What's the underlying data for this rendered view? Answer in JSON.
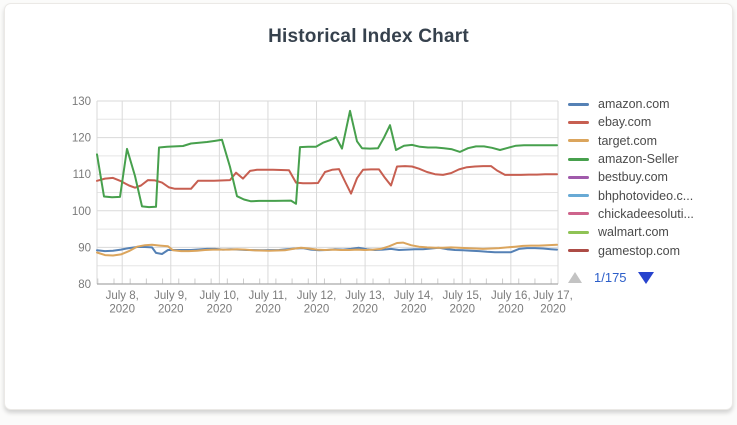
{
  "page": {
    "title": "Historical Index Chart"
  },
  "legend": {
    "items": [
      {
        "label": "amazon.com",
        "color": "#5581b5"
      },
      {
        "label": "ebay.com",
        "color": "#c75f51"
      },
      {
        "label": "target.com",
        "color": "#dba55d"
      },
      {
        "label": "amazon-Seller",
        "color": "#47a04d"
      },
      {
        "label": "bestbuy.com",
        "color": "#a05aab"
      },
      {
        "label": "bhphotovideo.c...",
        "color": "#68aad5"
      },
      {
        "label": "chickadeesoluti...",
        "color": "#ce648c"
      },
      {
        "label": "walmart.com",
        "color": "#8fc355"
      },
      {
        "label": "gamestop.com",
        "color": "#ad4c46"
      }
    ],
    "pagination": {
      "current": "1/175"
    }
  },
  "chart_data": {
    "type": "line",
    "title": "Historical Index Chart",
    "grid": true,
    "legend_position": "right",
    "ylim": [
      80,
      130
    ],
    "y_major_ticks": [
      80,
      90,
      100,
      110,
      120,
      130
    ],
    "y_minor_step": 5,
    "x_labels": [
      [
        "July 8,",
        "2020"
      ],
      [
        "July 9,",
        "2020"
      ],
      [
        "July 10,",
        "2020"
      ],
      [
        "July 11,",
        "2020"
      ],
      [
        "July 12,",
        "2020"
      ],
      [
        "July 13,",
        "2020"
      ],
      [
        "July 14,",
        "2020"
      ],
      [
        "July 15,",
        "2020"
      ],
      [
        "July 16,",
        "2020"
      ],
      [
        "July 17,",
        "2020"
      ]
    ],
    "series": [
      {
        "name": "amazon.com",
        "color": "#5581b5",
        "points": [
          [
            92,
            89.2
          ],
          [
            100,
            89.0
          ],
          [
            108,
            89.1
          ],
          [
            116,
            89.4
          ],
          [
            124,
            89.8
          ],
          [
            132,
            90.1
          ],
          [
            140,
            90.1
          ],
          [
            147,
            90.0
          ],
          [
            151,
            88.5
          ],
          [
            157,
            88.2
          ],
          [
            163,
            89.3
          ],
          [
            170,
            89.3
          ],
          [
            186,
            89.3
          ],
          [
            202,
            89.6
          ],
          [
            210,
            89.6
          ],
          [
            218,
            89.4
          ],
          [
            226,
            89.5
          ],
          [
            242,
            89.3
          ],
          [
            258,
            89.2
          ],
          [
            274,
            89.3
          ],
          [
            290,
            89.7
          ],
          [
            298,
            89.8
          ],
          [
            306,
            89.4
          ],
          [
            314,
            89.2
          ],
          [
            322,
            89.3
          ],
          [
            330,
            89.5
          ],
          [
            338,
            89.4
          ],
          [
            346,
            89.6
          ],
          [
            354,
            89.9
          ],
          [
            362,
            89.5
          ],
          [
            370,
            89.3
          ],
          [
            378,
            89.4
          ],
          [
            386,
            89.6
          ],
          [
            394,
            89.3
          ],
          [
            402,
            89.4
          ],
          [
            410,
            89.5
          ],
          [
            418,
            89.5
          ],
          [
            426,
            89.7
          ],
          [
            434,
            89.9
          ],
          [
            442,
            89.5
          ],
          [
            450,
            89.3
          ],
          [
            458,
            89.2
          ],
          [
            466,
            89.1
          ],
          [
            474,
            89.0
          ],
          [
            482,
            88.8
          ],
          [
            490,
            88.7
          ],
          [
            498,
            88.7
          ],
          [
            506,
            88.7
          ],
          [
            514,
            89.6
          ],
          [
            522,
            89.8
          ],
          [
            530,
            89.8
          ],
          [
            538,
            89.7
          ],
          [
            546,
            89.5
          ],
          [
            552,
            89.4
          ]
        ]
      },
      {
        "name": "ebay.com",
        "color": "#c75f51",
        "points": [
          [
            92,
            108.2
          ],
          [
            100,
            108.8
          ],
          [
            108,
            109.0
          ],
          [
            116,
            108.1
          ],
          [
            124,
            106.9
          ],
          [
            130,
            106.3
          ],
          [
            136,
            106.9
          ],
          [
            143,
            108.4
          ],
          [
            150,
            108.3
          ],
          [
            157,
            107.7
          ],
          [
            164,
            106.4
          ],
          [
            170,
            106.0
          ],
          [
            186,
            106.0
          ],
          [
            193,
            108.2
          ],
          [
            209,
            108.2
          ],
          [
            225,
            108.4
          ],
          [
            231,
            110.4
          ],
          [
            238,
            108.8
          ],
          [
            245,
            110.9
          ],
          [
            252,
            111.2
          ],
          [
            268,
            111.2
          ],
          [
            284,
            111.1
          ],
          [
            291,
            107.7
          ],
          [
            298,
            107.5
          ],
          [
            306,
            107.5
          ],
          [
            313,
            107.6
          ],
          [
            320,
            110.6
          ],
          [
            327,
            111.2
          ],
          [
            334,
            111.4
          ],
          [
            340,
            108.0
          ],
          [
            346,
            104.7
          ],
          [
            352,
            108.9
          ],
          [
            358,
            111.2
          ],
          [
            366,
            111.3
          ],
          [
            374,
            111.3
          ],
          [
            380,
            109.0
          ],
          [
            386,
            106.9
          ],
          [
            392,
            112.1
          ],
          [
            400,
            112.2
          ],
          [
            407,
            112.1
          ],
          [
            414,
            111.5
          ],
          [
            422,
            110.6
          ],
          [
            430,
            110.0
          ],
          [
            438,
            109.8
          ],
          [
            446,
            110.3
          ],
          [
            454,
            111.3
          ],
          [
            462,
            111.9
          ],
          [
            470,
            112.1
          ],
          [
            478,
            112.2
          ],
          [
            486,
            112.2
          ],
          [
            492,
            111.0
          ],
          [
            500,
            109.8
          ],
          [
            516,
            109.8
          ],
          [
            524,
            109.9
          ],
          [
            532,
            109.9
          ],
          [
            540,
            110.0
          ],
          [
            552,
            110.0
          ]
        ]
      },
      {
        "name": "target.com",
        "color": "#dba55d",
        "points": [
          [
            92,
            88.6
          ],
          [
            100,
            87.9
          ],
          [
            108,
            87.8
          ],
          [
            116,
            88.1
          ],
          [
            124,
            89.0
          ],
          [
            132,
            90.2
          ],
          [
            140,
            90.6
          ],
          [
            147,
            90.7
          ],
          [
            155,
            90.5
          ],
          [
            163,
            90.3
          ],
          [
            168,
            89.2
          ],
          [
            176,
            89.0
          ],
          [
            184,
            89.0
          ],
          [
            192,
            89.1
          ],
          [
            200,
            89.3
          ],
          [
            208,
            89.4
          ],
          [
            224,
            89.4
          ],
          [
            232,
            89.5
          ],
          [
            240,
            89.4
          ],
          [
            248,
            89.2
          ],
          [
            264,
            89.1
          ],
          [
            280,
            89.2
          ],
          [
            288,
            89.6
          ],
          [
            296,
            89.9
          ],
          [
            304,
            89.7
          ],
          [
            312,
            89.4
          ],
          [
            320,
            89.3
          ],
          [
            328,
            89.4
          ],
          [
            336,
            89.3
          ],
          [
            344,
            89.3
          ],
          [
            352,
            89.4
          ],
          [
            360,
            89.3
          ],
          [
            368,
            89.4
          ],
          [
            376,
            89.6
          ],
          [
            384,
            90.3
          ],
          [
            392,
            91.2
          ],
          [
            398,
            91.3
          ],
          [
            406,
            90.6
          ],
          [
            414,
            90.2
          ],
          [
            422,
            90.0
          ],
          [
            430,
            89.9
          ],
          [
            438,
            89.9
          ],
          [
            446,
            90.0
          ],
          [
            454,
            89.9
          ],
          [
            462,
            89.8
          ],
          [
            470,
            89.7
          ],
          [
            478,
            89.6
          ],
          [
            486,
            89.7
          ],
          [
            494,
            89.8
          ],
          [
            502,
            90.0
          ],
          [
            510,
            90.2
          ],
          [
            518,
            90.4
          ],
          [
            526,
            90.5
          ],
          [
            534,
            90.5
          ],
          [
            542,
            90.6
          ],
          [
            552,
            90.7
          ]
        ]
      },
      {
        "name": "amazon-Seller",
        "color": "#47a04d",
        "points": [
          [
            92,
            115.4
          ],
          [
            99,
            103.9
          ],
          [
            107,
            103.7
          ],
          [
            115,
            103.8
          ],
          [
            122,
            116.9
          ],
          [
            130,
            109.5
          ],
          [
            137,
            101.2
          ],
          [
            144,
            101.0
          ],
          [
            151,
            101.1
          ],
          [
            154,
            117.3
          ],
          [
            162,
            117.5
          ],
          [
            170,
            117.6
          ],
          [
            178,
            117.7
          ],
          [
            186,
            118.4
          ],
          [
            194,
            118.6
          ],
          [
            202,
            118.8
          ],
          [
            210,
            119.1
          ],
          [
            217,
            119.4
          ],
          [
            225,
            112.0
          ],
          [
            232,
            104.0
          ],
          [
            239,
            103.1
          ],
          [
            246,
            102.6
          ],
          [
            254,
            102.7
          ],
          [
            270,
            102.7
          ],
          [
            286,
            102.8
          ],
          [
            291,
            101.9
          ],
          [
            295,
            117.4
          ],
          [
            303,
            117.5
          ],
          [
            311,
            117.5
          ],
          [
            318,
            118.6
          ],
          [
            325,
            119.3
          ],
          [
            331,
            120.1
          ],
          [
            337,
            117.0
          ],
          [
            345,
            127.3
          ],
          [
            352,
            119.0
          ],
          [
            357,
            117.1
          ],
          [
            365,
            117.0
          ],
          [
            373,
            117.1
          ],
          [
            379,
            120.0
          ],
          [
            385,
            123.4
          ],
          [
            391,
            116.6
          ],
          [
            399,
            117.8
          ],
          [
            407,
            118.0
          ],
          [
            415,
            117.5
          ],
          [
            423,
            117.3
          ],
          [
            431,
            117.3
          ],
          [
            439,
            117.1
          ],
          [
            447,
            116.8
          ],
          [
            455,
            116.1
          ],
          [
            463,
            117.1
          ],
          [
            471,
            117.6
          ],
          [
            479,
            117.6
          ],
          [
            487,
            117.2
          ],
          [
            495,
            116.6
          ],
          [
            503,
            117.2
          ],
          [
            511,
            117.8
          ],
          [
            519,
            117.9
          ],
          [
            535,
            117.9
          ],
          [
            552,
            117.9
          ]
        ]
      }
    ]
  }
}
